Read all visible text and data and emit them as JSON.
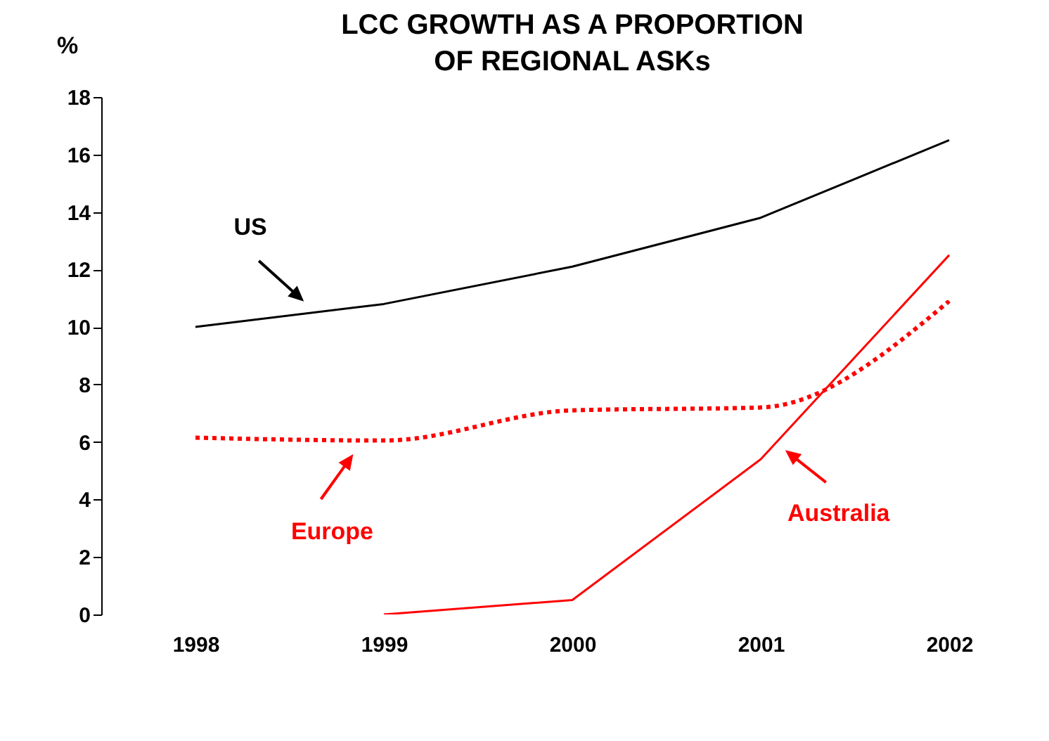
{
  "chart_data": {
    "type": "line",
    "title": "LCC GROWTH AS A PROPORTION OF REGIONAL ASKs",
    "ylabel": "%",
    "categories": [
      "1998",
      "1999",
      "2000",
      "2001",
      "2002"
    ],
    "series": [
      {
        "name": "US",
        "color": "#000000",
        "line_style": "solid",
        "values": [
          10.0,
          10.8,
          12.1,
          13.8,
          16.5
        ]
      },
      {
        "name": "Europe",
        "color": "#ff0000",
        "line_style": "dotted",
        "values": [
          6.15,
          6.05,
          7.1,
          7.2,
          10.9
        ]
      },
      {
        "name": "Australia",
        "color": "#ff0000",
        "line_style": "solid",
        "values": [
          null,
          0,
          0.5,
          5.4,
          12.5
        ]
      }
    ],
    "ylim": [
      0,
      18
    ],
    "yticks": [
      0,
      2,
      4,
      6,
      8,
      10,
      12,
      14,
      16,
      18
    ],
    "grid": false,
    "legend": "bottom",
    "marker": "none"
  }
}
